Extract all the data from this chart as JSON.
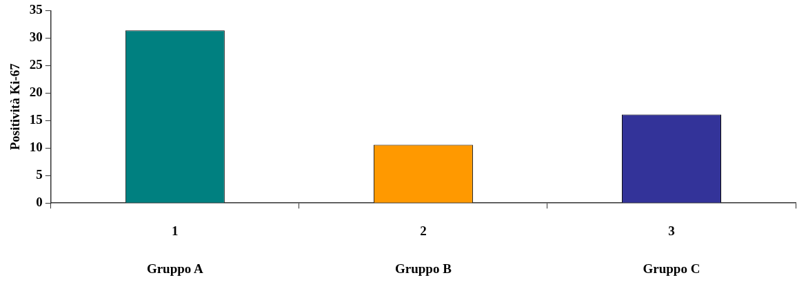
{
  "chart_data": {
    "type": "bar",
    "ylabel": "Positività Ki-67",
    "categories": [
      "1",
      "2",
      "3"
    ],
    "colors": [
      "#008080",
      "#ff9900",
      "#333399"
    ],
    "values": [
      31.4,
      10.6,
      16.1
    ],
    "ylim": [
      0,
      35
    ],
    "yticks": [
      0,
      5,
      10,
      15,
      20,
      25,
      30,
      35
    ],
    "grid": false,
    "legend": false,
    "annotations": [
      "Gruppo A",
      "Gruppo B",
      "Gruppo C"
    ]
  }
}
